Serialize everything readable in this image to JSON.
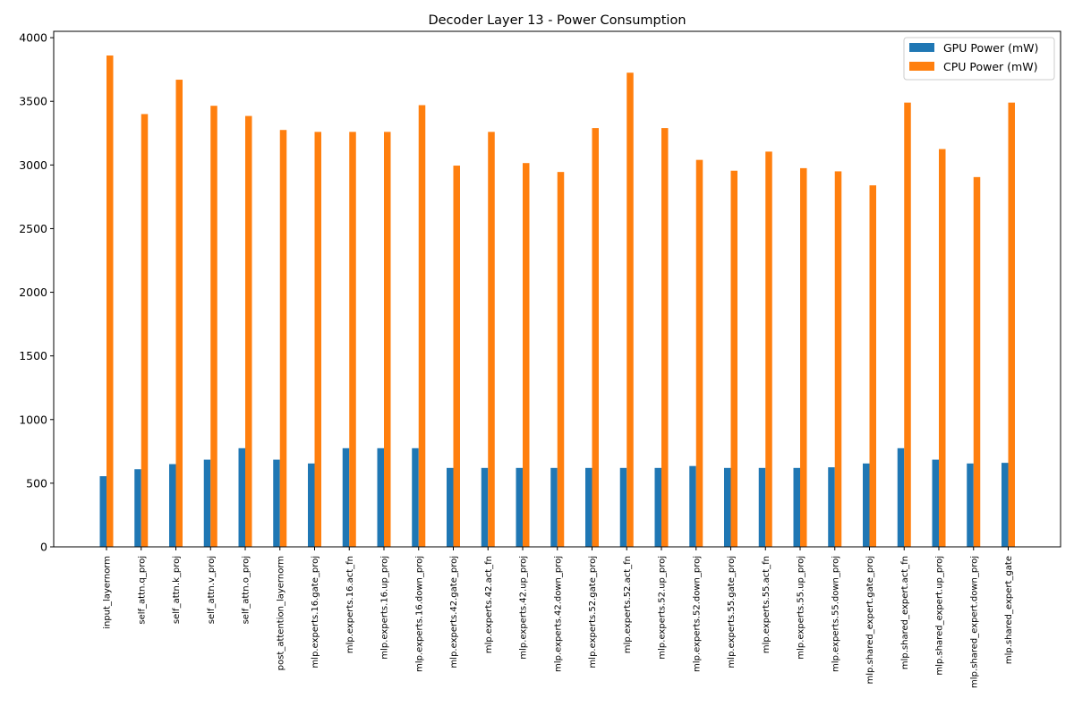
{
  "chart_data": {
    "type": "bar",
    "title": "Decoder Layer 13 - Power Consumption",
    "xlabel": "",
    "ylabel": "",
    "ylim": [
      0,
      4050
    ],
    "yticks": [
      0,
      500,
      1000,
      1500,
      2000,
      2500,
      3000,
      3500,
      4000
    ],
    "grid": false,
    "legend_position": "top-right",
    "categories": [
      "input_layernorm",
      "self_attn.q_proj",
      "self_attn.k_proj",
      "self_attn.v_proj",
      "self_attn.o_proj",
      "post_attention_layernorm",
      "mlp.experts.16.gate_proj",
      "mlp.experts.16.act_fn",
      "mlp.experts.16.up_proj",
      "mlp.experts.16.down_proj",
      "mlp.experts.42.gate_proj",
      "mlp.experts.42.act_fn",
      "mlp.experts.42.up_proj",
      "mlp.experts.42.down_proj",
      "mlp.experts.52.gate_proj",
      "mlp.experts.52.act_fn",
      "mlp.experts.52.up_proj",
      "mlp.experts.52.down_proj",
      "mlp.experts.55.gate_proj",
      "mlp.experts.55.act_fn",
      "mlp.experts.55.up_proj",
      "mlp.experts.55.down_proj",
      "mlp.shared_expert.gate_proj",
      "mlp.shared_expert.act_fn",
      "mlp.shared_expert.up_proj",
      "mlp.shared_expert.down_proj",
      "mlp.shared_expert_gate"
    ],
    "series": [
      {
        "name": "GPU Power (mW)",
        "color": "#1f77b4",
        "values": [
          555,
          610,
          650,
          685,
          775,
          685,
          655,
          775,
          775,
          775,
          620,
          620,
          620,
          620,
          620,
          620,
          620,
          635,
          620,
          620,
          620,
          625,
          655,
          775,
          685,
          655,
          660
        ]
      },
      {
        "name": "CPU Power (mW)",
        "color": "#ff7f0e",
        "values": [
          3860,
          3400,
          3670,
          3465,
          3385,
          3275,
          3260,
          3260,
          3260,
          3470,
          2995,
          3260,
          3015,
          2945,
          3290,
          3725,
          3290,
          3040,
          2955,
          3105,
          2975,
          2950,
          2840,
          3490,
          3125,
          2905,
          3490
        ]
      }
    ]
  }
}
